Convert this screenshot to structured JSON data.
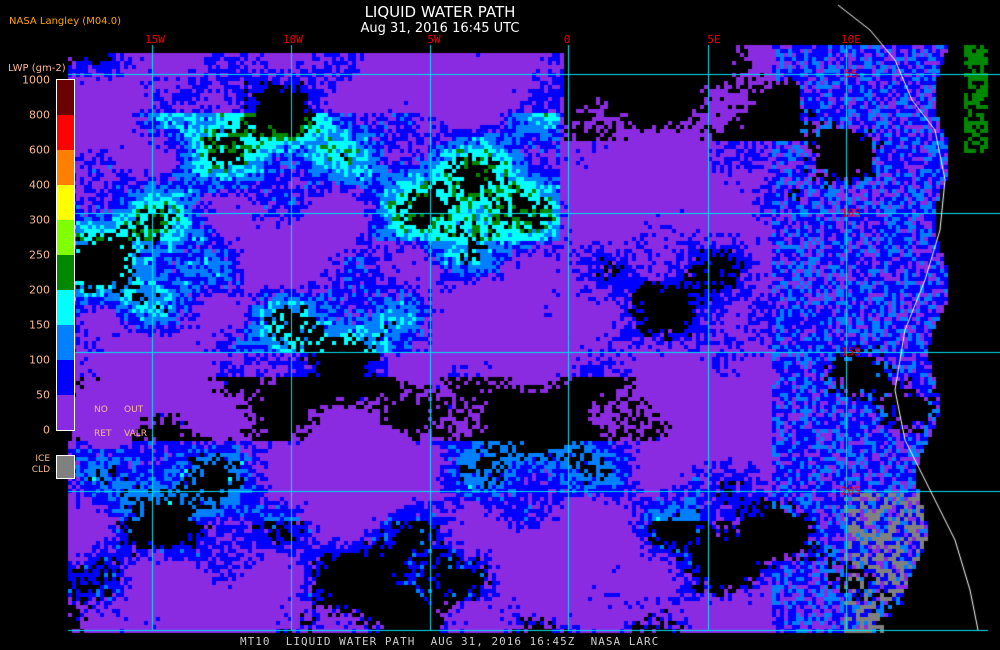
{
  "header": {
    "title": "LIQUID WATER PATH",
    "subtitle": "Aug 31, 2016 16:45 UTC",
    "credit": "NASA Langley (M04.0)"
  },
  "map": {
    "lon_labels": [
      "15W",
      "10W",
      "5W",
      "0",
      "5E",
      "10E"
    ],
    "lat_labels": [
      "5S",
      "10S",
      "15S",
      "20S"
    ],
    "grid_color": "#00e0f0",
    "background_color": "#8a2be2",
    "coastline_color": "#ffffff"
  },
  "legend": {
    "unit": "LWP (gm-2)",
    "ticks": [
      "1000",
      "800",
      "600",
      "400",
      "300",
      "250",
      "200",
      "150",
      "100",
      "50",
      "0"
    ],
    "colors": [
      "#6b0000",
      "#ff0000",
      "#ff8000",
      "#ffff00",
      "#80ff00",
      "#008800",
      "#00ffff",
      "#0080ff",
      "#0000ff",
      "#8a2be2"
    ],
    "no_retrieval": [
      "NO",
      "RET"
    ],
    "out_of_range": [
      "OUT",
      "VALR"
    ],
    "ice_cloud": [
      "ICE",
      "CLD"
    ],
    "ice_color": "#808080"
  },
  "footer": "MT10  LIQUID WATER PATH  AUG 31, 2016 16:45Z  NASA LARC"
}
